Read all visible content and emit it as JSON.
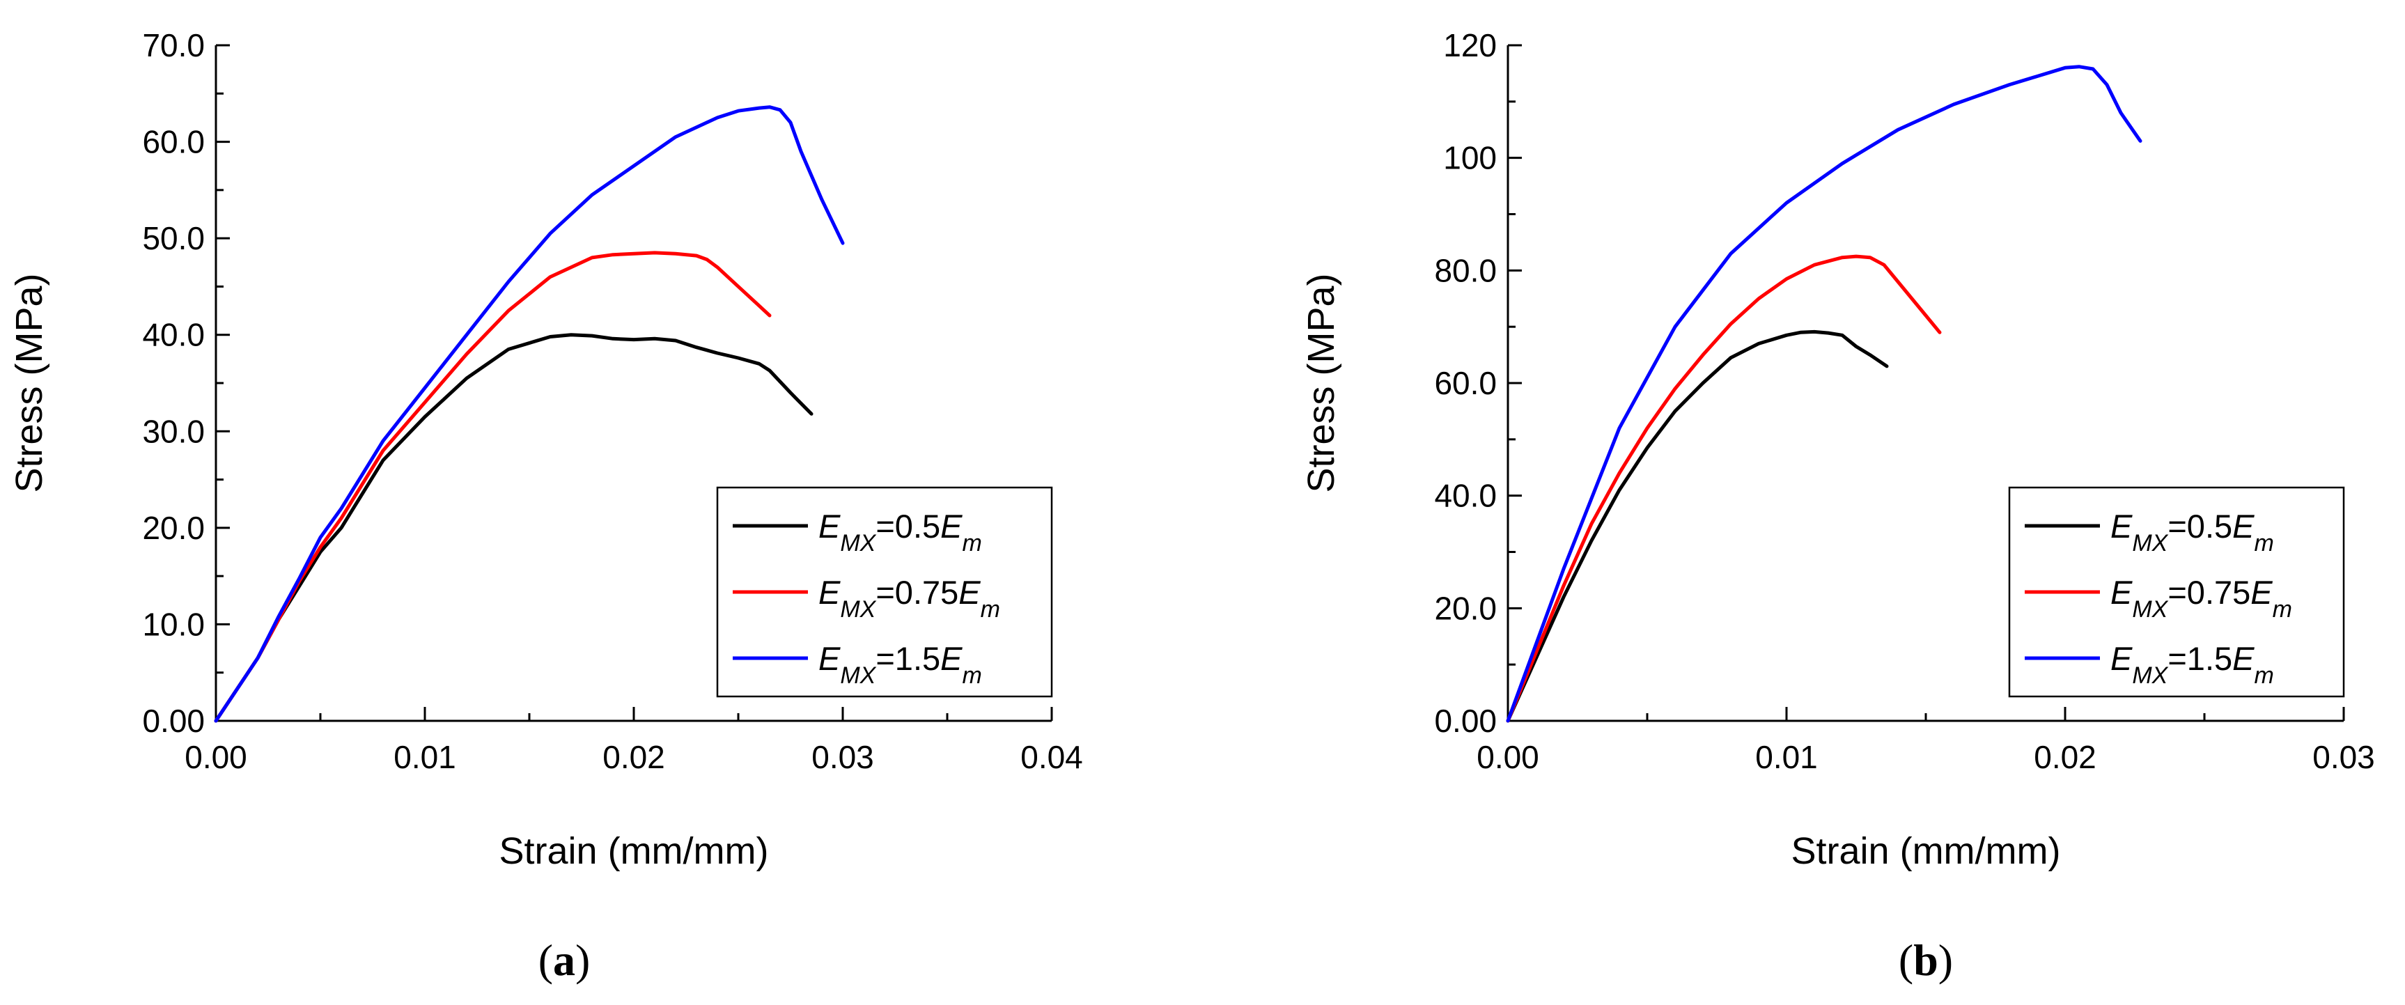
{
  "chart_data": [
    {
      "type": "line",
      "panel": "a",
      "caption": {
        "open": "(",
        "letter": "a",
        "close": ")"
      },
      "xlabel": "Strain (mm/mm)",
      "ylabel": "Stress (MPa)",
      "xlim": [
        0,
        0.04
      ],
      "ylim": [
        0,
        70
      ],
      "xticks": [
        0,
        0.01,
        0.02,
        0.03,
        0.04
      ],
      "xtick_labels": [
        "0.00",
        "0.01",
        "0.02",
        "0.03",
        "0.04"
      ],
      "yticks": [
        0,
        10,
        20,
        30,
        40,
        50,
        60,
        70
      ],
      "ytick_labels": [
        "0.00",
        "10.0",
        "20.0",
        "30.0",
        "40.0",
        "50.0",
        "60.0",
        "70.0"
      ],
      "legend_position": "bottom-right",
      "series": [
        {
          "name": "E_MX=0.5E_m",
          "legend": {
            "e": "E",
            "sub1": "MX",
            "mid": "=0.5",
            "e2": "E",
            "sub2": "m"
          },
          "color": "#000000",
          "x": [
            0,
            0.002,
            0.003,
            0.004,
            0.005,
            0.006,
            0.008,
            0.01,
            0.012,
            0.014,
            0.016,
            0.017,
            0.018,
            0.019,
            0.02,
            0.021,
            0.022,
            0.023,
            0.024,
            0.025,
            0.026,
            0.0265,
            0.0275,
            0.0285
          ],
          "y": [
            0,
            6.5,
            10.5,
            14,
            17.5,
            20,
            27,
            31.5,
            35.5,
            38.5,
            39.8,
            40,
            39.9,
            39.6,
            39.5,
            39.6,
            39.4,
            38.7,
            38.1,
            37.6,
            37,
            36.3,
            34,
            31.8
          ]
        },
        {
          "name": "E_MX=0.75E_m",
          "legend": {
            "e": "E",
            "sub1": "MX",
            "mid": "=0.75",
            "e2": "E",
            "sub2": "m"
          },
          "color": "#ff0000",
          "x": [
            0,
            0.002,
            0.003,
            0.004,
            0.005,
            0.006,
            0.008,
            0.01,
            0.012,
            0.014,
            0.016,
            0.018,
            0.019,
            0.02,
            0.021,
            0.022,
            0.023,
            0.0235,
            0.024,
            0.025,
            0.026,
            0.0265
          ],
          "y": [
            0,
            6.5,
            10.5,
            14.5,
            18,
            21,
            28,
            33,
            38,
            42.5,
            46,
            48,
            48.3,
            48.4,
            48.5,
            48.4,
            48.2,
            47.8,
            47,
            45,
            43,
            42
          ]
        },
        {
          "name": "E_MX=1.5E_m",
          "legend": {
            "e": "E",
            "sub1": "MX",
            "mid": "=1.5",
            "e2": "E",
            "sub2": "m"
          },
          "color": "#0000ff",
          "x": [
            0,
            0.002,
            0.003,
            0.004,
            0.005,
            0.006,
            0.008,
            0.01,
            0.012,
            0.014,
            0.016,
            0.018,
            0.02,
            0.022,
            0.024,
            0.025,
            0.026,
            0.0265,
            0.027,
            0.0275,
            0.028,
            0.029,
            0.03
          ],
          "y": [
            0,
            6.5,
            10.8,
            14.8,
            19,
            22,
            29,
            34.5,
            40,
            45.5,
            50.5,
            54.5,
            57.5,
            60.5,
            62.5,
            63.2,
            63.5,
            63.6,
            63.3,
            62,
            59,
            54,
            49.5
          ]
        }
      ]
    },
    {
      "type": "line",
      "panel": "b",
      "caption": {
        "open": "(",
        "letter": "b",
        "close": ")"
      },
      "xlabel": "Strain (mm/mm)",
      "ylabel": "Stress (MPa)",
      "xlim": [
        0,
        0.03
      ],
      "ylim": [
        0,
        120
      ],
      "xticks": [
        0,
        0.01,
        0.02,
        0.03
      ],
      "xtick_labels": [
        "0.00",
        "0.01",
        "0.02",
        "0.03"
      ],
      "yticks": [
        0,
        20,
        40,
        60,
        80,
        100,
        120
      ],
      "ytick_labels": [
        "0.00",
        "20.0",
        "40.0",
        "60.0",
        "80.0",
        "100",
        "120"
      ],
      "legend_position": "bottom-right",
      "series": [
        {
          "name": "E_MX=0.5E_m",
          "legend": {
            "e": "E",
            "sub1": "MX",
            "mid": "=0.5",
            "e2": "E",
            "sub2": "m"
          },
          "color": "#000000",
          "x": [
            0,
            0.001,
            0.002,
            0.003,
            0.004,
            0.005,
            0.006,
            0.007,
            0.008,
            0.009,
            0.01,
            0.0105,
            0.011,
            0.0115,
            0.012,
            0.0125,
            0.013,
            0.0136
          ],
          "y": [
            0,
            11,
            22,
            32,
            41,
            48.5,
            55,
            60,
            64.5,
            67,
            68.5,
            69,
            69.1,
            68.9,
            68.5,
            66.5,
            65,
            63
          ]
        },
        {
          "name": "E_MX=0.75E_m",
          "legend": {
            "e": "E",
            "sub1": "MX",
            "mid": "=0.75",
            "e2": "E",
            "sub2": "m"
          },
          "color": "#ff0000",
          "x": [
            0,
            0.001,
            0.002,
            0.003,
            0.004,
            0.005,
            0.006,
            0.007,
            0.008,
            0.009,
            0.01,
            0.011,
            0.012,
            0.0125,
            0.013,
            0.0135,
            0.014,
            0.015,
            0.0155
          ],
          "y": [
            0,
            12,
            24,
            35,
            44,
            52,
            59,
            65,
            70.5,
            75,
            78.5,
            81,
            82.3,
            82.5,
            82.3,
            81,
            78,
            72,
            69
          ]
        },
        {
          "name": "E_MX=1.5E_m",
          "legend": {
            "e": "E",
            "sub1": "MX",
            "mid": "=1.5",
            "e2": "E",
            "sub2": "m"
          },
          "color": "#0000ff",
          "x": [
            0,
            0.002,
            0.004,
            0.006,
            0.008,
            0.01,
            0.012,
            0.014,
            0.016,
            0.018,
            0.019,
            0.02,
            0.0205,
            0.021,
            0.0215,
            0.022,
            0.0227
          ],
          "y": [
            0,
            27,
            52,
            70,
            83,
            92,
            99,
            105,
            109.5,
            113,
            114.5,
            116,
            116.2,
            115.8,
            113,
            108,
            103
          ]
        }
      ]
    }
  ]
}
